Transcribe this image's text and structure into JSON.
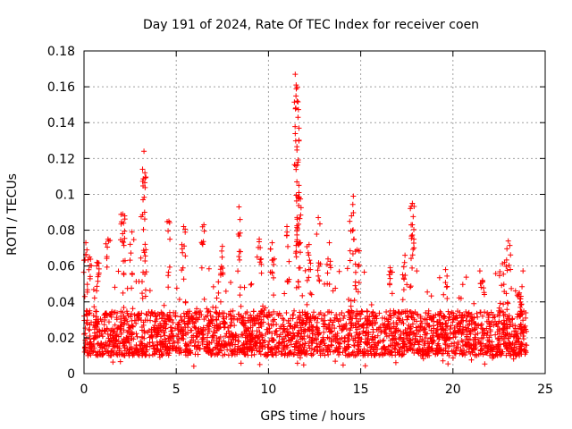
{
  "chart_data": {
    "type": "scatter",
    "title": "Day 191 of 2024, Rate Of TEC Index for receiver coen",
    "xlabel": "GPS time / hours",
    "ylabel": "ROTI / TECUs",
    "xlim": [
      0,
      25
    ],
    "ylim": [
      0,
      0.18
    ],
    "xticks": [
      0,
      5,
      10,
      15,
      20,
      25
    ],
    "xtick_labels": [
      "0",
      "5",
      "10",
      "15",
      "20",
      "25"
    ],
    "yticks": [
      0,
      0.02,
      0.04,
      0.06,
      0.08,
      0.1,
      0.12,
      0.14,
      0.16,
      0.18
    ],
    "ytick_labels": [
      "0",
      "0.02",
      "0.04",
      "0.06",
      "0.08",
      "0.1",
      "0.12",
      "0.14",
      "0.16",
      "0.18"
    ],
    "grid": true,
    "marker": "+",
    "series_color": "#ff0000",
    "x_extent": [
      0,
      24
    ],
    "baseline_band": [
      0.01,
      0.035
    ],
    "spikes": [
      {
        "x": 0.1,
        "y": 0.073
      },
      {
        "x": 0.3,
        "y": 0.065
      },
      {
        "x": 0.7,
        "y": 0.062
      },
      {
        "x": 1.3,
        "y": 0.075
      },
      {
        "x": 2.1,
        "y": 0.089
      },
      {
        "x": 2.2,
        "y": 0.088
      },
      {
        "x": 2.6,
        "y": 0.079
      },
      {
        "x": 3.2,
        "y": 0.097
      },
      {
        "x": 3.3,
        "y": 0.112
      },
      {
        "x": 3.25,
        "y": 0.124
      },
      {
        "x": 4.6,
        "y": 0.085
      },
      {
        "x": 5.4,
        "y": 0.082
      },
      {
        "x": 6.5,
        "y": 0.083
      },
      {
        "x": 7.5,
        "y": 0.071
      },
      {
        "x": 8.4,
        "y": 0.093
      },
      {
        "x": 9.5,
        "y": 0.075
      },
      {
        "x": 10.2,
        "y": 0.073
      },
      {
        "x": 11.0,
        "y": 0.082
      },
      {
        "x": 11.45,
        "y": 0.167
      },
      {
        "x": 11.5,
        "y": 0.161
      },
      {
        "x": 11.55,
        "y": 0.152
      },
      {
        "x": 11.6,
        "y": 0.143
      },
      {
        "x": 11.6,
        "y": 0.118
      },
      {
        "x": 11.65,
        "y": 0.105
      },
      {
        "x": 11.65,
        "y": 0.101
      },
      {
        "x": 12.2,
        "y": 0.072
      },
      {
        "x": 12.7,
        "y": 0.087
      },
      {
        "x": 13.3,
        "y": 0.073
      },
      {
        "x": 14.5,
        "y": 0.088
      },
      {
        "x": 14.6,
        "y": 0.099
      },
      {
        "x": 14.8,
        "y": 0.069
      },
      {
        "x": 16.6,
        "y": 0.059
      },
      {
        "x": 17.4,
        "y": 0.066
      },
      {
        "x": 17.8,
        "y": 0.095
      },
      {
        "x": 17.8,
        "y": 0.083
      },
      {
        "x": 19.6,
        "y": 0.058
      },
      {
        "x": 21.6,
        "y": 0.052
      },
      {
        "x": 22.8,
        "y": 0.062
      },
      {
        "x": 23.0,
        "y": 0.074
      },
      {
        "x": 23.6,
        "y": 0.045
      }
    ]
  }
}
